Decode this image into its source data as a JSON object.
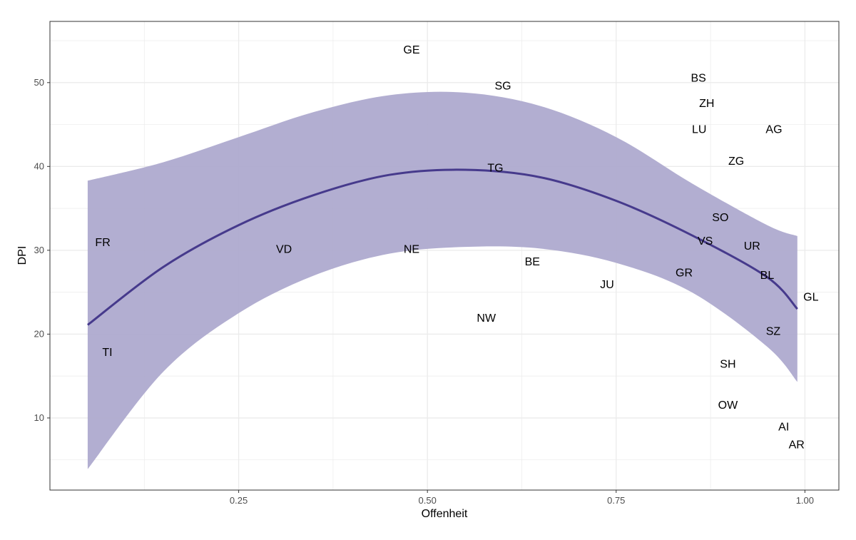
{
  "chart_data": {
    "type": "scatter",
    "title": "",
    "xlabel": "Offenheit",
    "ylabel": "DPI",
    "xlim": [
      0.0,
      1.045
    ],
    "ylim": [
      1.4,
      57.3
    ],
    "x_ticks": [
      0.25,
      0.5,
      0.75,
      1.0
    ],
    "x_tick_labels": [
      "0.25",
      "0.50",
      "0.75",
      "1.00"
    ],
    "y_ticks": [
      10,
      20,
      30,
      40,
      50
    ],
    "y_tick_labels": [
      "10",
      "20",
      "30",
      "40",
      "50"
    ],
    "grid": true,
    "points": [
      {
        "label": "GE",
        "x": 0.479,
        "y": 54.0
      },
      {
        "label": "SG",
        "x": 0.6,
        "y": 49.7
      },
      {
        "label": "BS",
        "x": 0.859,
        "y": 50.6
      },
      {
        "label": "ZH",
        "x": 0.87,
        "y": 47.6
      },
      {
        "label": "LU",
        "x": 0.86,
        "y": 44.5
      },
      {
        "label": "AG",
        "x": 0.959,
        "y": 44.5
      },
      {
        "label": "ZG",
        "x": 0.909,
        "y": 40.7
      },
      {
        "label": "TG",
        "x": 0.59,
        "y": 39.9
      },
      {
        "label": "SO",
        "x": 0.888,
        "y": 34.0
      },
      {
        "label": "FR",
        "x": 0.07,
        "y": 31.0
      },
      {
        "label": "VS",
        "x": 0.868,
        "y": 31.2
      },
      {
        "label": "UR",
        "x": 0.93,
        "y": 30.6
      },
      {
        "label": "VD",
        "x": 0.31,
        "y": 30.2
      },
      {
        "label": "NE",
        "x": 0.479,
        "y": 30.2
      },
      {
        "label": "BE",
        "x": 0.639,
        "y": 28.7
      },
      {
        "label": "GR",
        "x": 0.84,
        "y": 27.4
      },
      {
        "label": "BL",
        "x": 0.95,
        "y": 27.1
      },
      {
        "label": "JU",
        "x": 0.738,
        "y": 26.0
      },
      {
        "label": "GL",
        "x": 1.008,
        "y": 24.5
      },
      {
        "label": "NW",
        "x": 0.578,
        "y": 22.0
      },
      {
        "label": "SZ",
        "x": 0.958,
        "y": 20.4
      },
      {
        "label": "TI",
        "x": 0.076,
        "y": 17.9
      },
      {
        "label": "SH",
        "x": 0.898,
        "y": 16.5
      },
      {
        "label": "OW",
        "x": 0.898,
        "y": 11.6
      },
      {
        "label": "AI",
        "x": 0.972,
        "y": 9.0
      },
      {
        "label": "AR",
        "x": 0.989,
        "y": 6.9
      }
    ],
    "smooth": {
      "x": [
        0.05,
        0.15,
        0.25,
        0.35,
        0.45,
        0.55,
        0.65,
        0.75,
        0.85,
        0.95,
        0.99
      ],
      "fit": [
        21.1,
        28.0,
        33.0,
        36.6,
        39.0,
        39.6,
        38.7,
        35.9,
        31.8,
        26.8,
        23.0
      ],
      "upper": [
        38.3,
        40.5,
        43.5,
        46.5,
        48.5,
        48.8,
        47.2,
        43.5,
        38.0,
        33.0,
        31.7
      ],
      "lower": [
        3.9,
        15.5,
        22.5,
        27.0,
        29.6,
        30.4,
        30.2,
        28.5,
        25.0,
        18.5,
        14.3
      ]
    },
    "colors": {
      "line": "#463a8c",
      "band": "#aeaacf",
      "grid": "#ebebeb",
      "text": "#000000",
      "axis_text": "#4d4d4d"
    }
  }
}
